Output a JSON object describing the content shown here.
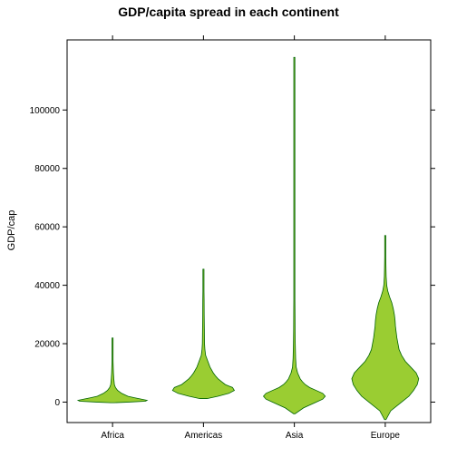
{
  "chart_data": {
    "type": "violin",
    "title": "GDP/capita spread in each continent",
    "xlabel": "",
    "ylabel": "GDP/cap",
    "categories": [
      "Africa",
      "Americas",
      "Asia",
      "Europe"
    ],
    "ylim": [
      -7000,
      124000
    ],
    "yticks": [
      0,
      20000,
      40000,
      60000,
      80000,
      100000
    ],
    "fill_color": "#9ACD32",
    "stroke_color": "#006400",
    "violins": [
      {
        "category": "Africa",
        "min": 241,
        "max": 21951,
        "density": [
          [
            -200,
            0.05
          ],
          [
            0,
            0.45
          ],
          [
            300,
            0.9
          ],
          [
            600,
            0.95
          ],
          [
            1000,
            0.8
          ],
          [
            1500,
            0.6
          ],
          [
            2000,
            0.42
          ],
          [
            3000,
            0.25
          ],
          [
            4000,
            0.14
          ],
          [
            5000,
            0.08
          ],
          [
            6000,
            0.05
          ],
          [
            8000,
            0.035
          ],
          [
            10000,
            0.025
          ],
          [
            12000,
            0.02
          ],
          [
            14000,
            0.015
          ],
          [
            16000,
            0.008
          ],
          [
            18000,
            0.005
          ],
          [
            20000,
            0.004
          ],
          [
            21951,
            0.003
          ]
        ]
      },
      {
        "category": "Americas",
        "min": 1202,
        "max": 45500,
        "density": [
          [
            1200,
            0.1
          ],
          [
            2000,
            0.4
          ],
          [
            3000,
            0.7
          ],
          [
            4000,
            0.85
          ],
          [
            5000,
            0.8
          ],
          [
            6000,
            0.6
          ],
          [
            7000,
            0.5
          ],
          [
            8000,
            0.4
          ],
          [
            9000,
            0.33
          ],
          [
            10000,
            0.27
          ],
          [
            12000,
            0.18
          ],
          [
            14000,
            0.12
          ],
          [
            16000,
            0.06
          ],
          [
            18000,
            0.04
          ],
          [
            20000,
            0.03
          ],
          [
            25000,
            0.025
          ],
          [
            30000,
            0.02
          ],
          [
            35000,
            0.018
          ],
          [
            38000,
            0.012
          ],
          [
            42000,
            0.008
          ],
          [
            45500,
            0.005
          ]
        ]
      },
      {
        "category": "Asia",
        "min": -4000,
        "max": 118000,
        "density": [
          [
            -4000,
            0.02
          ],
          [
            -2000,
            0.25
          ],
          [
            0,
            0.6
          ],
          [
            1000,
            0.78
          ],
          [
            2000,
            0.85
          ],
          [
            3000,
            0.78
          ],
          [
            4000,
            0.6
          ],
          [
            5000,
            0.42
          ],
          [
            6000,
            0.3
          ],
          [
            7000,
            0.22
          ],
          [
            8000,
            0.16
          ],
          [
            10000,
            0.09
          ],
          [
            12000,
            0.05
          ],
          [
            15000,
            0.035
          ],
          [
            20000,
            0.025
          ],
          [
            25000,
            0.02
          ],
          [
            30000,
            0.018
          ],
          [
            35000,
            0.015
          ],
          [
            40000,
            0.008
          ],
          [
            50000,
            0.005
          ],
          [
            70000,
            0.004
          ],
          [
            90000,
            0.004
          ],
          [
            110000,
            0.004
          ],
          [
            118000,
            0.003
          ]
        ]
      },
      {
        "category": "Europe",
        "min": -6000,
        "max": 57000,
        "density": [
          [
            -6000,
            0.02
          ],
          [
            -3000,
            0.15
          ],
          [
            0,
            0.45
          ],
          [
            2000,
            0.65
          ],
          [
            4000,
            0.78
          ],
          [
            6000,
            0.88
          ],
          [
            8000,
            0.92
          ],
          [
            10000,
            0.85
          ],
          [
            12000,
            0.7
          ],
          [
            14000,
            0.55
          ],
          [
            16000,
            0.45
          ],
          [
            18000,
            0.38
          ],
          [
            20000,
            0.35
          ],
          [
            22000,
            0.32
          ],
          [
            24000,
            0.3
          ],
          [
            26000,
            0.28
          ],
          [
            28000,
            0.27
          ],
          [
            30000,
            0.25
          ],
          [
            32000,
            0.22
          ],
          [
            34000,
            0.18
          ],
          [
            36000,
            0.12
          ],
          [
            38000,
            0.07
          ],
          [
            40000,
            0.04
          ],
          [
            43000,
            0.025
          ],
          [
            46000,
            0.02
          ],
          [
            50000,
            0.015
          ],
          [
            53000,
            0.008
          ],
          [
            57000,
            0.004
          ]
        ]
      }
    ]
  }
}
